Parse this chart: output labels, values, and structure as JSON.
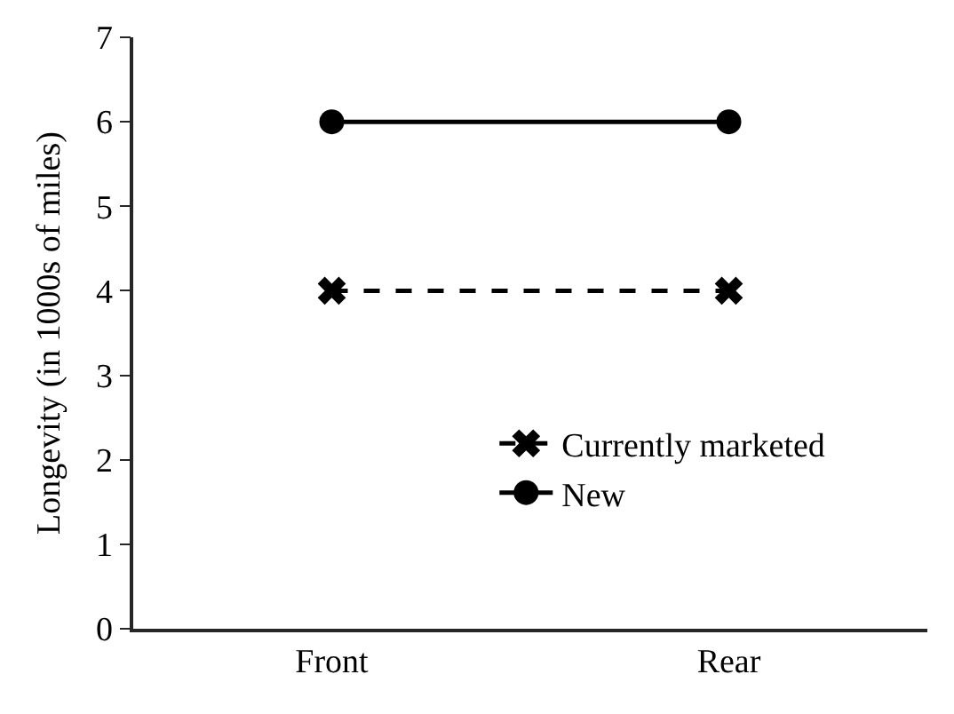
{
  "chart_data": {
    "type": "line",
    "ylabel": "Longevity (in 1000s of miles)",
    "categories": [
      "Front",
      "Rear"
    ],
    "series": [
      {
        "name": "Currently marketed",
        "color": "#000000",
        "values": [
          4,
          4
        ],
        "marker": "cross",
        "line_style": "dashed"
      },
      {
        "name": "New",
        "color": "#000000",
        "values": [
          6,
          6
        ],
        "marker": "circle",
        "line_style": "solid"
      }
    ],
    "ylim": [
      0,
      7
    ],
    "yticks": [
      0,
      1,
      2,
      3,
      4,
      5,
      6,
      7
    ],
    "grid": false,
    "legend": "right"
  }
}
